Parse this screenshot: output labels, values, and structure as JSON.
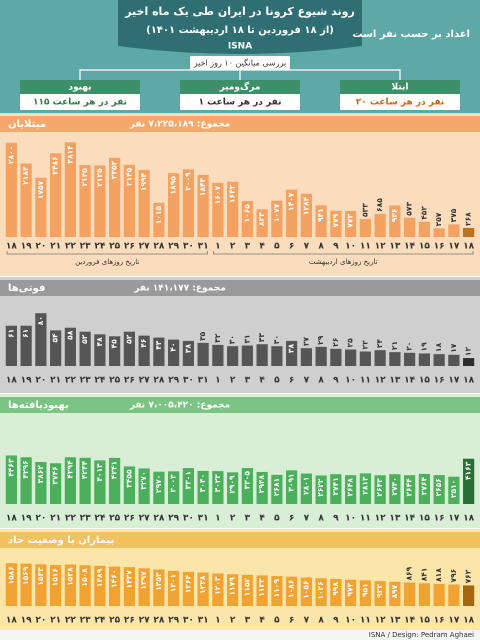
{
  "header": {
    "title": "روند شیوع کرونا در ایران طی یک ماه اخیر",
    "subtitle": "(از ۱۸ فروردین تا ۱۸ اردیبهشت ۱۴۰۱)",
    "brand": "ISNA",
    "note": "اعداد بر حسب نفر است",
    "average_label": "بررسی میانگین ۱۰ روز اخیر",
    "boxes": [
      {
        "title": "بهبود",
        "text": "۱۱۵ نفر در هر ساعت"
      },
      {
        "title": "مرگ‌ومیر",
        "text": "۱ نفر در هر ساعت"
      },
      {
        "title": "ابتلا",
        "text": "۲۰ نفر در هر ساعت"
      }
    ]
  },
  "footer": "ISNA / Design: Pedram Aghaei",
  "chart_data": [
    {
      "type": "bar",
      "title": "مبتلایان",
      "total": "مجموع: ۷،۲۲۵،۱۸۹ نفر",
      "color": "#f3a262",
      "highlight_color": "#b8731d",
      "background": "#fbdcbc",
      "strip_color": "#f4a96a",
      "ylim": [
        0,
        3000
      ],
      "month_labels": [
        "تاریخ روزهای فروردین",
        "تاریخ روزهای اردیبهشت"
      ],
      "categories": [
        "۱۸",
        "۱۹",
        "۲۰",
        "۲۱",
        "۲۲",
        "۲۳",
        "۲۴",
        "۲۵",
        "۲۶",
        "۲۷",
        "۲۸",
        "۲۹",
        "۳۰",
        "۳۱",
        "۱",
        "۲",
        "۳",
        "۴",
        "۵",
        "۶",
        "۷",
        "۸",
        "۹",
        "۱۰",
        "۱۱",
        "۱۲",
        "۱۳",
        "۱۴",
        "۱۵",
        "۱۶",
        "۱۷",
        "۱۸"
      ],
      "values": [
        2800,
        2184,
        1757,
        2486,
        2814,
        2135,
        2125,
        2352,
        2145,
        1994,
        1015,
        1895,
        2009,
        1844,
        1607,
        1642,
        1065,
        823,
        1077,
        1407,
        1284,
        941,
        779,
        773,
        533,
        685,
        936,
        573,
        452,
        257,
        375,
        268
      ],
      "value_labels": [
        "۲۸۰۰",
        "۲۱۸۴",
        "۱۷۵۷",
        "۲۴۸۶",
        "۲۸۱۴",
        "۲۱۳۵",
        "۲۱۲۵",
        "۲۳۵۲",
        "۲۱۴۵",
        "۱۹۹۴",
        "۱۰۱۵",
        "۱۸۹۵",
        "۲۰۰۹",
        "۱۸۴۴",
        "۱۶۰۷",
        "۱۶۴۲",
        "۱۰۶۵",
        "۸۲۳",
        "۱۰۷۷",
        "۱۴۰۷",
        "۱۲۸۴",
        "۹۴۱",
        "۷۷۹",
        "۷۷۳",
        "۵۳۳",
        "۶۸۵",
        "۹۳۶",
        "۵۷۳",
        "۴۵۲",
        "۲۵۷",
        "۳۷۵",
        "۲۶۸"
      ]
    },
    {
      "type": "bar",
      "title": "فوتی‌ها",
      "total": "مجموع: ۱۴۱،۱۷۷ نفر",
      "color": "#555555",
      "highlight_color": "#2e2e2e",
      "background": "#cfcfcf",
      "strip_color": "#9a9a9a",
      "ylim": [
        0,
        100
      ],
      "categories": [
        "۱۸",
        "۱۹",
        "۲۰",
        "۲۱",
        "۲۲",
        "۲۳",
        "۲۴",
        "۲۵",
        "۲۶",
        "۲۷",
        "۲۸",
        "۲۹",
        "۳۰",
        "۳۱",
        "۱",
        "۲",
        "۳",
        "۴",
        "۵",
        "۶",
        "۷",
        "۸",
        "۹",
        "۱۰",
        "۱۱",
        "۱۲",
        "۱۳",
        "۱۴",
        "۱۵",
        "۱۶",
        "۱۷",
        "۱۸"
      ],
      "values": [
        61,
        61,
        80,
        54,
        58,
        52,
        48,
        45,
        52,
        46,
        43,
        40,
        38,
        35,
        32,
        30,
        31,
        33,
        30,
        38,
        27,
        29,
        26,
        25,
        22,
        24,
        21,
        20,
        19,
        18,
        17,
        12
      ],
      "value_labels": [
        "۶۱",
        "۶۱",
        "۸۰",
        "۵۴",
        "۵۸",
        "۵۲",
        "۴۸",
        "۴۵",
        "۵۲",
        "۴۶",
        "۴۳",
        "۴۰",
        "۳۸",
        "۳۵",
        "۳۲",
        "۳۰",
        "۳۱",
        "۳۳",
        "۳۰",
        "۳۸",
        "۲۷",
        "۲۹",
        "۲۶",
        "۲۵",
        "۲۲",
        "۲۴",
        "۲۱",
        "۲۰",
        "۱۹",
        "۱۸",
        "۱۷",
        "۱۲"
      ]
    },
    {
      "type": "bar",
      "title": "بهبودیافته‌ها",
      "total": "مجموع: ۷،۰۰۵،۴۲۰ نفر",
      "color": "#4caf5c",
      "highlight_color": "#2a6e36",
      "background": "#d8eed7",
      "strip_color": "#7cc483",
      "ylim": [
        0,
        8000
      ],
      "categories": [
        "۱۸",
        "۱۹",
        "۲۰",
        "۲۱",
        "۲۲",
        "۲۳",
        "۲۴",
        "۲۵",
        "۲۶",
        "۲۷",
        "۲۸",
        "۲۹",
        "۳۰",
        "۳۱",
        "۱",
        "۲",
        "۳",
        "۴",
        "۵",
        "۶",
        "۷",
        "۸",
        "۹",
        "۱۰",
        "۱۱",
        "۱۲",
        "۱۳",
        "۱۴",
        "۱۵",
        "۱۶",
        "۱۷",
        "۱۸"
      ],
      "values": [
        4463,
        4296,
        3862,
        3746,
        4294,
        4244,
        4013,
        4241,
        3455,
        3270,
        2970,
        3003,
        3301,
        3040,
        3023,
        2909,
        3305,
        2948,
        2681,
        3091,
        2801,
        2622,
        2741,
        2648,
        2813,
        2643,
        2740,
        2644,
        2764,
        2656,
        2510,
        4163
      ],
      "value_labels": [
        "۴۴۶۳",
        "۴۲۹۶",
        "۳۸۶۲",
        "۳۷۴۶",
        "۴۲۹۴",
        "۴۲۴۴",
        "۴۰۱۳",
        "۴۲۴۱",
        "۳۴۵۵",
        "۳۲۷۰",
        "۲۹۷۰",
        "۳۰۰۳",
        "۳۳۰۱",
        "۳۰۴۰",
        "۳۰۲۳",
        "۲۹۰۹",
        "۳۳۰۵",
        "۲۹۴۸",
        "۲۶۸۱",
        "۳۰۹۱",
        "۲۸۰۱",
        "۲۶۲۲",
        "۲۷۴۱",
        "۲۶۴۸",
        "۲۸۱۳",
        "۲۶۴۳",
        "۲۷۴۰",
        "۲۶۴۴",
        "۲۷۶۴",
        "۲۶۵۶",
        "۲۵۱۰",
        "۴۱۶۳"
      ]
    },
    {
      "type": "bar",
      "title": "بیماران با وضعیت حاد",
      "color": "#f0a233",
      "highlight_color": "#a5660f",
      "background": "#fbe5a8",
      "strip_color": "#f3c15d",
      "ylim": [
        0,
        2000
      ],
      "categories": [
        "۱۸",
        "۱۹",
        "۲۰",
        "۲۱",
        "۲۲",
        "۲۳",
        "۲۴",
        "۲۵",
        "۲۶",
        "۲۷",
        "۲۸",
        "۲۹",
        "۳۰",
        "۳۱",
        "۱",
        "۲",
        "۳",
        "۴",
        "۵",
        "۶",
        "۷",
        "۸",
        "۹",
        "۱۰",
        "۱۱",
        "۱۲",
        "۱۳",
        "۱۴",
        "۱۵",
        "۱۶",
        "۱۷",
        "۱۸"
      ],
      "values": [
        1586,
        1569,
        1543,
        1516,
        1538,
        1508,
        1489,
        1460,
        1437,
        1397,
        1353,
        1301,
        1264,
        1238,
        1203,
        1179,
        1152,
        1133,
        1109,
        1086,
        1056,
        1026,
        998,
        973,
        951,
        922,
        897,
        869,
        841,
        818,
        796,
        762
      ],
      "value_labels": [
        "۱۵۸۶",
        "۱۵۶۹",
        "۱۵۴۳",
        "۱۵۱۶",
        "۱۵۳۸",
        "۱۵۰۸",
        "۱۴۸۹",
        "۱۴۶۰",
        "۱۴۳۷",
        "۱۳۹۷",
        "۱۳۵۳",
        "۱۳۰۱",
        "۱۲۶۴",
        "۱۲۳۸",
        "۱۲۰۳",
        "۱۱۷۹",
        "۱۱۵۲",
        "۱۱۳۳",
        "۱۱۰۹",
        "۱۰۸۶",
        "۱۰۵۶",
        "۱۰۲۶",
        "۹۹۸",
        "۹۷۳",
        "۹۵۱",
        "۹۲۲",
        "۸۹۷",
        "۸۶۹",
        "۸۴۱",
        "۸۱۸",
        "۷۹۶",
        "۷۶۲"
      ]
    }
  ]
}
